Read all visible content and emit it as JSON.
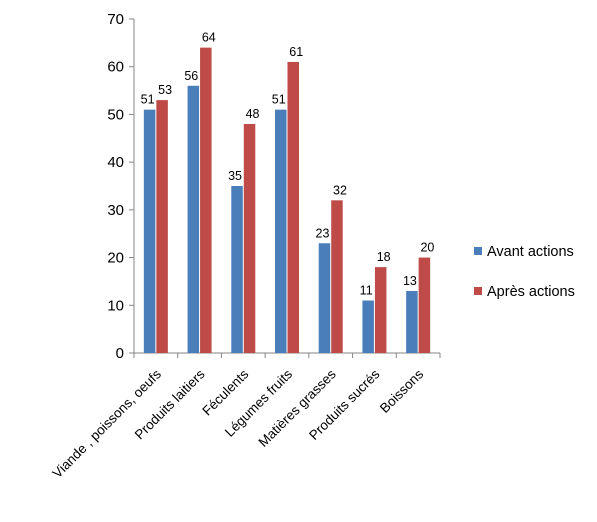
{
  "chart_data": {
    "type": "bar",
    "title": "",
    "xlabel": "",
    "ylabel": "",
    "ylim": [
      0,
      70
    ],
    "yticks": [
      0,
      10,
      20,
      30,
      40,
      50,
      60,
      70
    ],
    "categories": [
      "Viande , poissons, oeufs",
      "Produits laitiers",
      "Féculents",
      "Légumes fruits",
      "Matières grasses",
      "Produits sucrés",
      "Boissons"
    ],
    "series": [
      {
        "name": "Avant actions",
        "color": "#4a7ebb",
        "values": [
          51,
          56,
          35,
          51,
          23,
          11,
          13
        ]
      },
      {
        "name": "Après actions",
        "color": "#be4b48",
        "values": [
          53,
          64,
          48,
          61,
          32,
          18,
          20
        ]
      }
    ],
    "grid": false,
    "legend_position": "right"
  }
}
